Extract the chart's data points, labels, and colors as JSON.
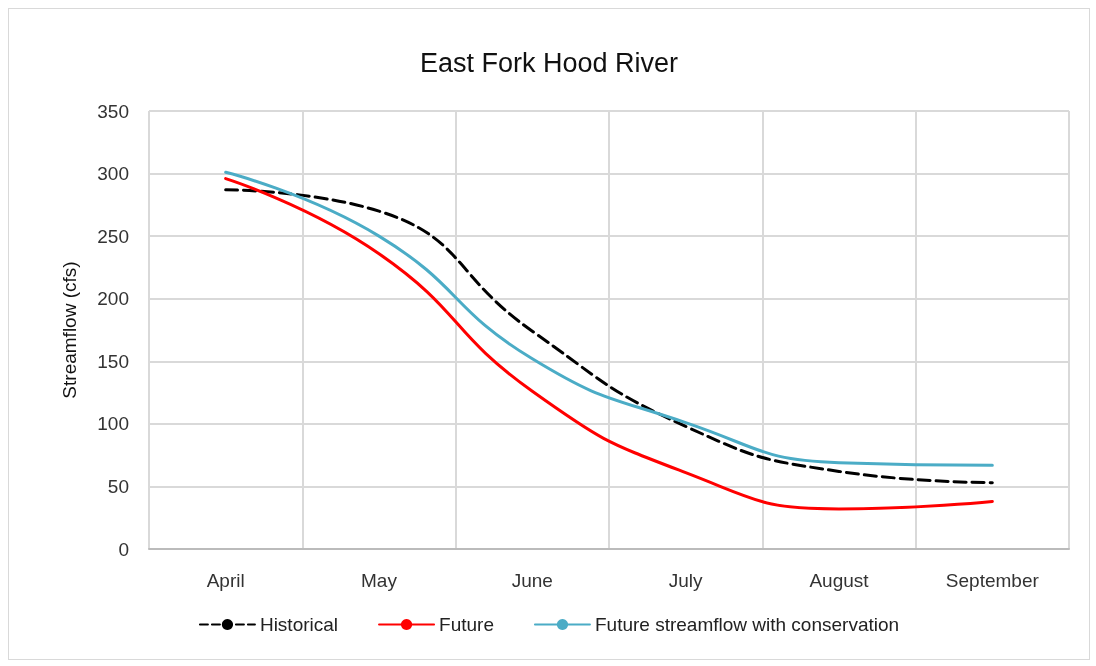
{
  "chart_data": {
    "type": "line",
    "title": "East Fork Hood River",
    "ylabel": "Streamflow (cfs)",
    "categories": [
      "April",
      "May",
      "June",
      "July",
      "August",
      "September"
    ],
    "series": [
      {
        "name": "Historical",
        "color": "#000000",
        "line_style": "dashed",
        "values": [
          287,
          270,
          174,
          98,
          62,
          53
        ]
      },
      {
        "name": "Future",
        "color": "#ff0000",
        "line_style": "solid",
        "values": [
          296,
          236,
          126,
          61,
          32,
          38
        ]
      },
      {
        "name": "Future streamflow with conservation",
        "color": "#4bacc6",
        "line_style": "solid",
        "values": [
          301,
          250,
          152,
          101,
          69,
          67
        ]
      }
    ],
    "ylim": [
      0,
      350
    ],
    "yticks": [
      0,
      50,
      100,
      150,
      200,
      250,
      300,
      350
    ],
    "grid": true,
    "legend": "bottom",
    "marker": "none"
  }
}
